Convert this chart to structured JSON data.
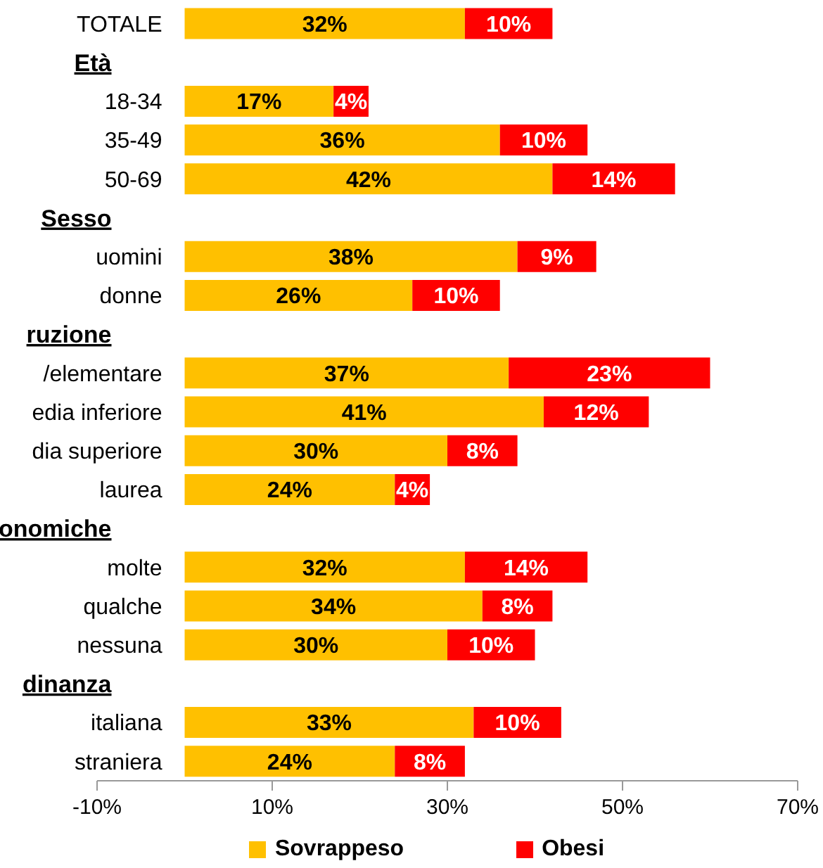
{
  "chart_data": {
    "type": "bar",
    "orientation": "horizontal",
    "stacked": true,
    "categories": [
      "TOTALE",
      "Età",
      "18-34",
      "35-49",
      "50-69",
      "Sesso",
      "uomini",
      "donne",
      "ruzione",
      "/elementare",
      "edia inferiore",
      "dia superiore",
      "laurea",
      "onomiche",
      "molte",
      "qualche",
      "nessuna",
      "dinanza",
      "italiana",
      "straniera"
    ],
    "series": [
      {
        "name": "Sovrappeso",
        "color": "#ffc000",
        "values": [
          32,
          null,
          17,
          36,
          42,
          null,
          38,
          26,
          null,
          37,
          41,
          30,
          24,
          null,
          32,
          34,
          30,
          null,
          33,
          24
        ],
        "value_labels": [
          "32%",
          null,
          "17%",
          "36%",
          "42%",
          null,
          "38%",
          "26%",
          null,
          "37%",
          "41%",
          "30%",
          "24%",
          null,
          "32%",
          "34%",
          "30%",
          null,
          "33%",
          "24%"
        ]
      },
      {
        "name": "Obesi",
        "color": "#ff0000",
        "values": [
          10,
          null,
          4,
          10,
          14,
          null,
          9,
          10,
          null,
          23,
          12,
          8,
          4,
          null,
          14,
          8,
          10,
          null,
          10,
          8
        ],
        "value_labels": [
          "10%",
          null,
          "4%",
          "10%",
          "14%",
          null,
          "9%",
          "10%",
          null,
          "23%",
          "12%",
          "8%",
          "4%",
          null,
          "14%",
          "8%",
          "10%",
          null,
          "10%",
          "8%"
        ]
      }
    ],
    "xlim": [
      -10,
      70
    ],
    "xticks": [
      {
        "value": -10,
        "label": "-10%"
      },
      {
        "value": 10,
        "label": "10%"
      },
      {
        "value": 30,
        "label": "30%"
      },
      {
        "value": 50,
        "label": "50%"
      },
      {
        "value": 70,
        "label": "70%"
      }
    ],
    "grid": false,
    "legend": "bottom"
  }
}
